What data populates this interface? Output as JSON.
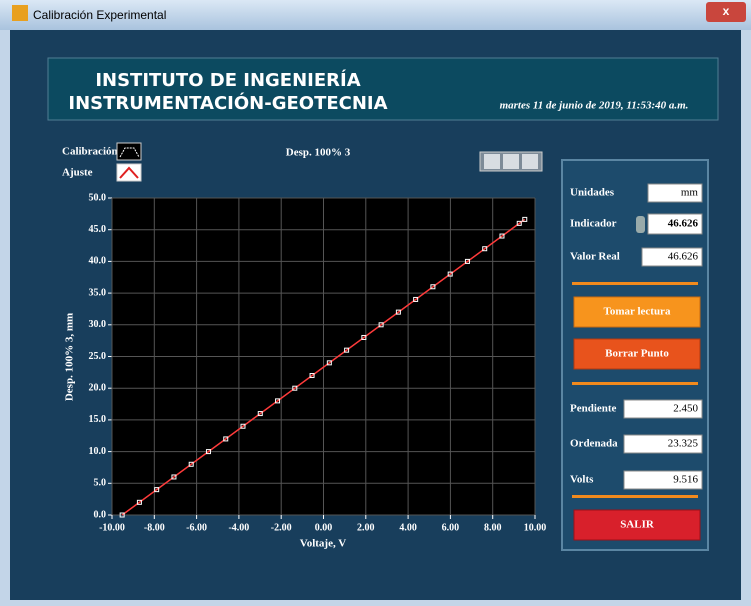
{
  "window": {
    "title": "Calibración Experimental"
  },
  "header": {
    "line1": "INSTITUTO DE INGENIERÍA",
    "line2": "INSTRUMENTACIÓN-GEOTECNIA",
    "datetime": "martes 11 de junio de 2019, 11:53:40 a.m."
  },
  "controls": {
    "unidades": {
      "label": "Unidades",
      "value": "mm"
    },
    "indicador": {
      "label": "Indicador",
      "value": "46.626"
    },
    "valor_real": {
      "label": "Valor Real",
      "value": "46.626"
    },
    "tomar_lectura": "Tomar lectura",
    "borrar_punto": "Borrar Punto",
    "pendiente": {
      "label": "Pendiente",
      "value": "2.450"
    },
    "ordenada": {
      "label": "Ordenada",
      "value": "23.325"
    },
    "volts": {
      "label": "Volts",
      "value": "9.516"
    },
    "salir": "SALIR"
  },
  "chart_data": {
    "type": "scatter",
    "title": "Desp. 100% 3",
    "xlabel": "Voltaje, V",
    "ylabel": "Desp. 100% 3, mm",
    "xlim": [
      -10,
      10
    ],
    "ylim": [
      0,
      50
    ],
    "grid": true,
    "xticks": [
      {
        "value": -10,
        "label": "-10.00"
      },
      {
        "value": -8,
        "label": "-8.00"
      },
      {
        "value": -6,
        "label": "-6.00"
      },
      {
        "value": -4,
        "label": "-4.00"
      },
      {
        "value": -2,
        "label": "-2.00"
      },
      {
        "value": 0,
        "label": "0.00"
      },
      {
        "value": 2,
        "label": "2.00"
      },
      {
        "value": 4,
        "label": "4.00"
      },
      {
        "value": 6,
        "label": "6.00"
      },
      {
        "value": 8,
        "label": "8.00"
      },
      {
        "value": 10,
        "label": "10.00"
      }
    ],
    "yticks": [
      {
        "value": 0,
        "label": "0.0"
      },
      {
        "value": 5,
        "label": "5.0"
      },
      {
        "value": 10,
        "label": "10.0"
      },
      {
        "value": 15,
        "label": "15.0"
      },
      {
        "value": 20,
        "label": "20.0"
      },
      {
        "value": 25,
        "label": "25.0"
      },
      {
        "value": 30,
        "label": "30.0"
      },
      {
        "value": 35,
        "label": "35.0"
      },
      {
        "value": 40,
        "label": "40.0"
      },
      {
        "value": 45,
        "label": "45.0"
      },
      {
        "value": 50,
        "label": "50.0"
      }
    ],
    "series": [
      {
        "name": "Calibración",
        "color": "#ffffff",
        "x": [
          -9.52,
          -8.704,
          -7.888,
          -7.071,
          -6.255,
          -5.439,
          -4.622,
          -3.806,
          -2.99,
          -2.173,
          -1.357,
          -0.541,
          0.276,
          1.092,
          1.908,
          2.724,
          3.541,
          4.357,
          5.173,
          5.99,
          6.806,
          7.622,
          8.439,
          9.255,
          9.516
        ],
        "values": [
          0,
          2,
          4,
          6,
          8,
          10,
          12,
          14,
          16,
          18,
          20,
          22,
          24,
          26,
          28,
          30,
          32,
          34,
          36,
          38,
          40,
          42,
          44,
          46,
          46.626
        ]
      },
      {
        "name": "Ajuste",
        "color": "#ff3b3b",
        "x": [
          -9.52,
          9.516
        ],
        "values": [
          0,
          46.626
        ]
      }
    ]
  }
}
